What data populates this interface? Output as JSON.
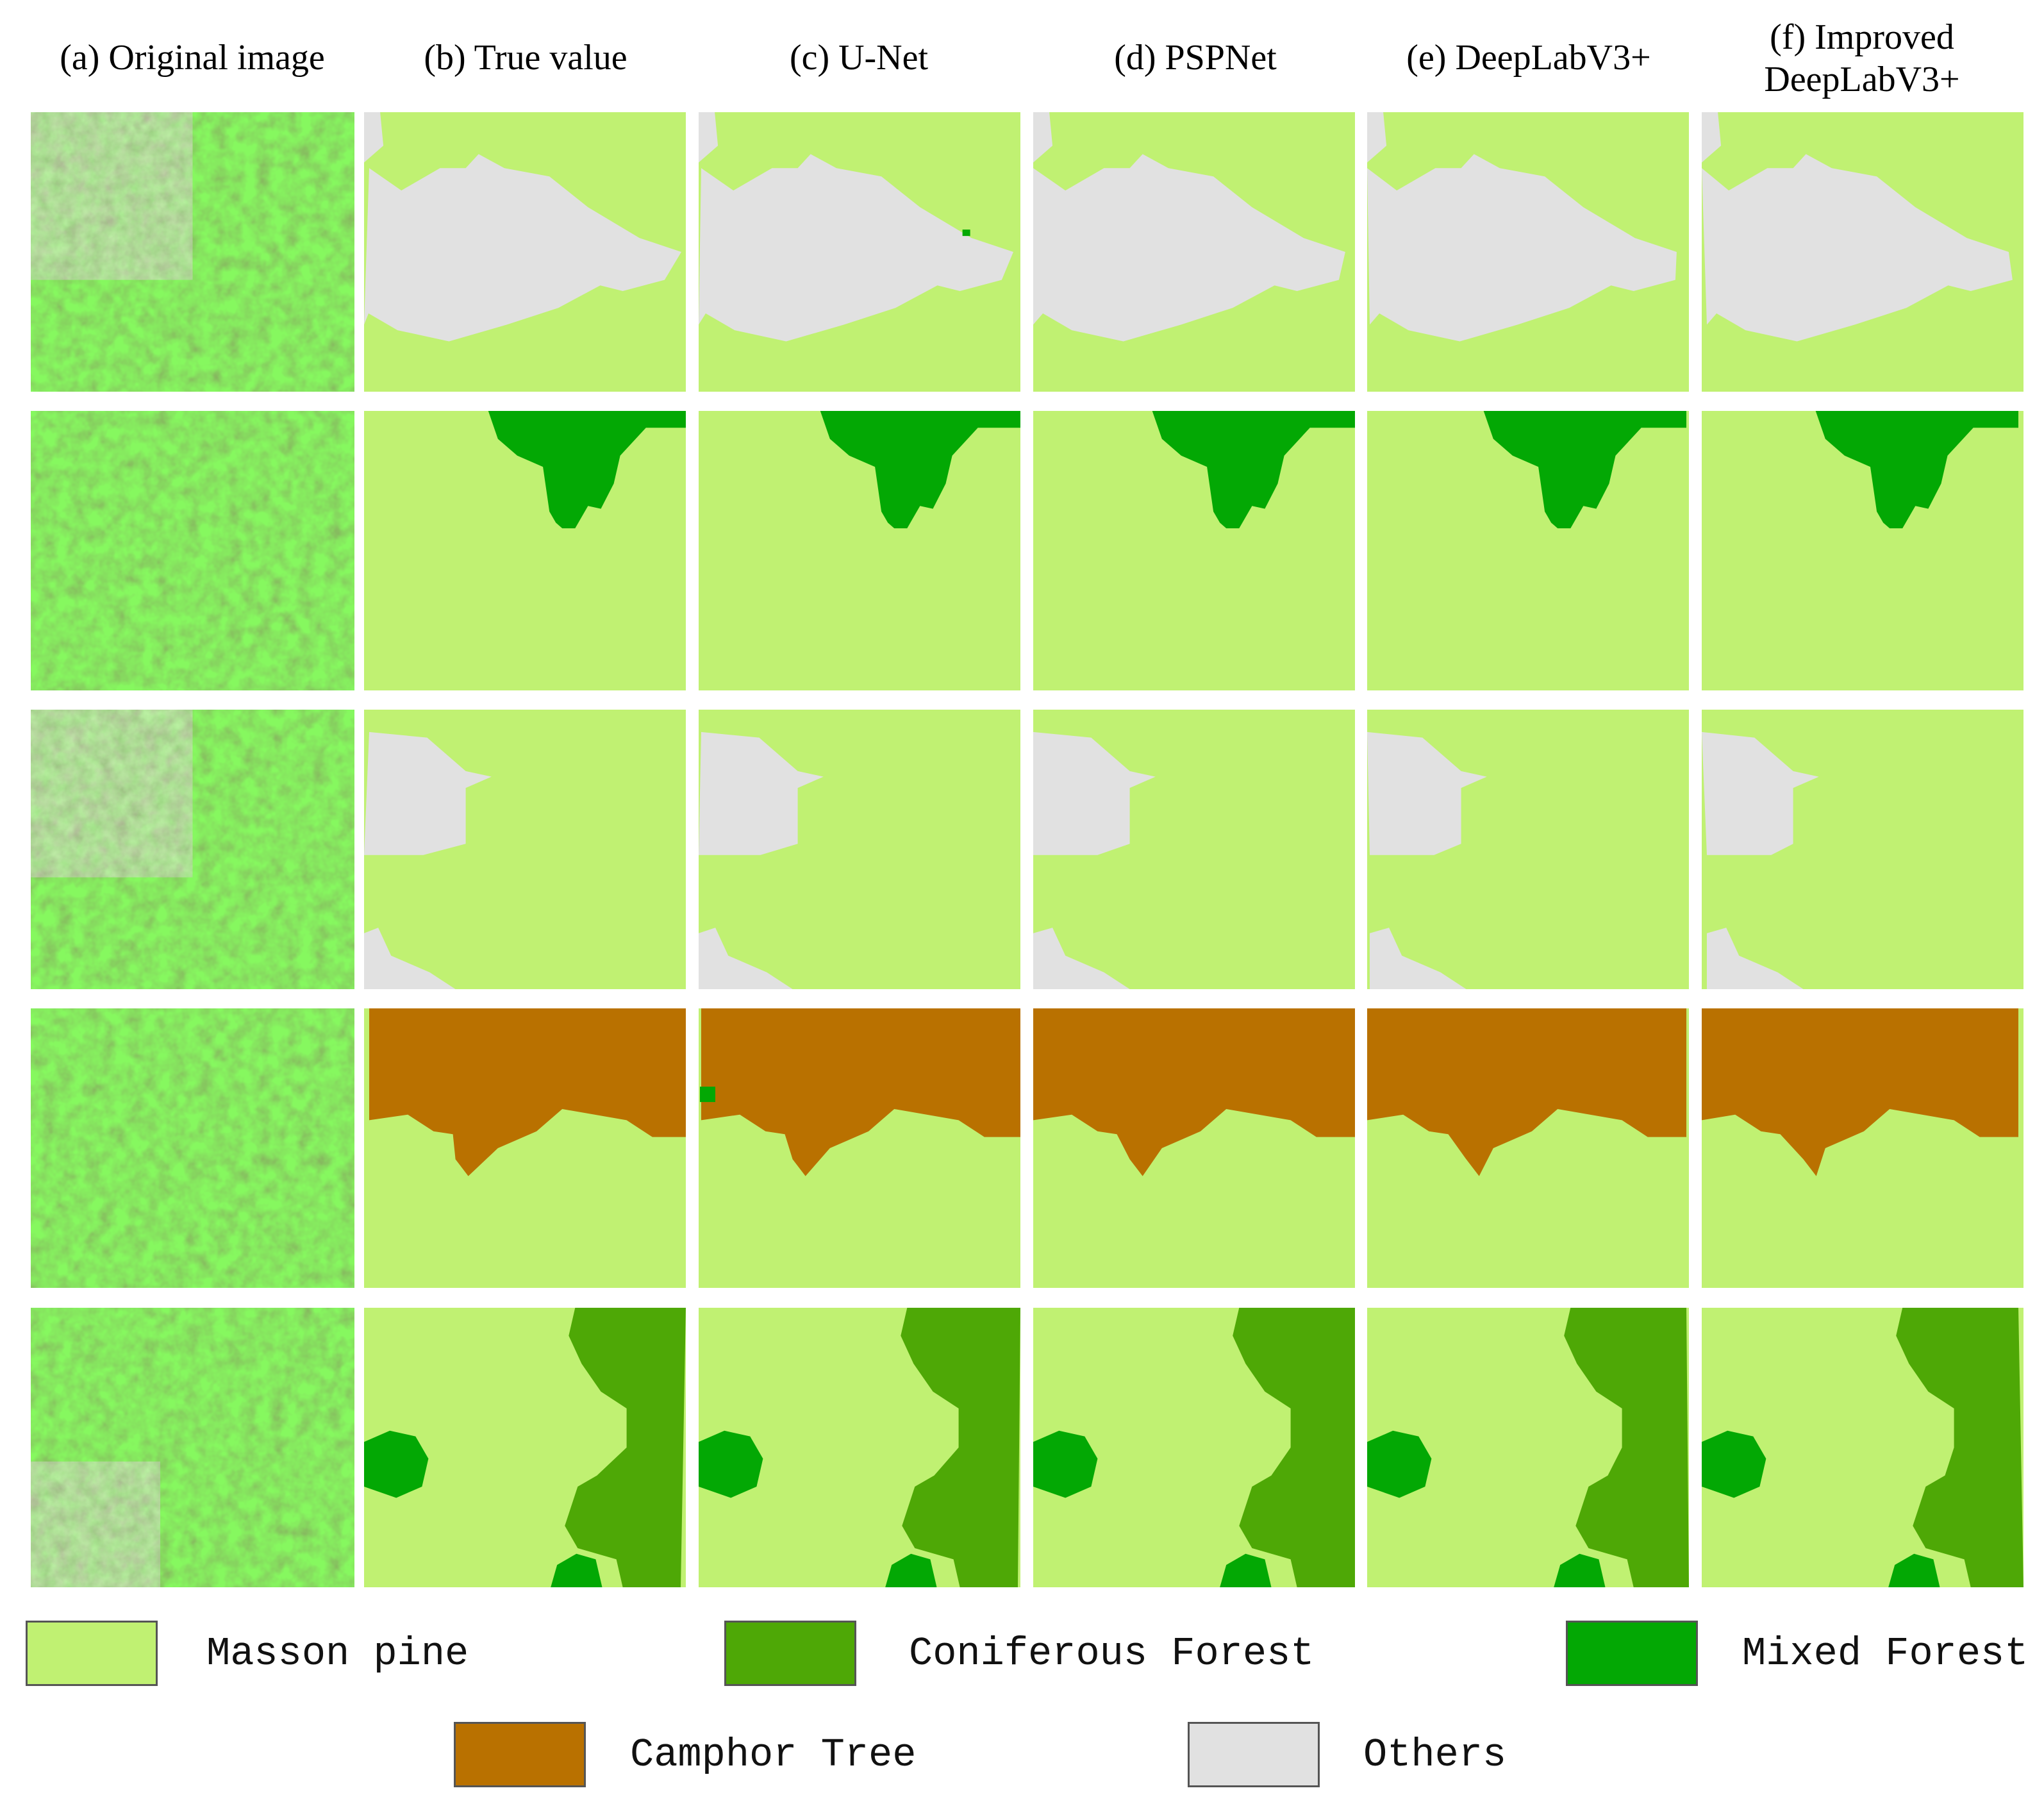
{
  "columns": [
    {
      "label": "(a) Original image"
    },
    {
      "label": "(b) True value"
    },
    {
      "label": "(c) U-Net"
    },
    {
      "label": "(d) PSPNet"
    },
    {
      "label": "(e) DeepLabV3+"
    },
    {
      "label": "(f) Improved",
      "label2": "DeepLabV3+"
    }
  ],
  "rows": 5,
  "classes": {
    "masson": {
      "name": "Masson pine",
      "color": "#c0f172"
    },
    "conif": {
      "name": "Coniferous Forest",
      "color": "#4ea806"
    },
    "mixed": {
      "name": "Mixed Forest",
      "color": "#03a804"
    },
    "camphor": {
      "name": "Camphor Tree",
      "color": "#b97100"
    },
    "others": {
      "name": "Others",
      "color": "#e1e1e1"
    }
  },
  "legend": [
    {
      "key": "masson",
      "label": "Masson pine"
    },
    {
      "key": "conif",
      "label": "Coniferous Forest"
    },
    {
      "key": "mixed",
      "label": "Mixed Forest"
    },
    {
      "key": "camphor",
      "label": "Camphor Tree"
    },
    {
      "key": "others",
      "label": "Others"
    }
  ]
}
